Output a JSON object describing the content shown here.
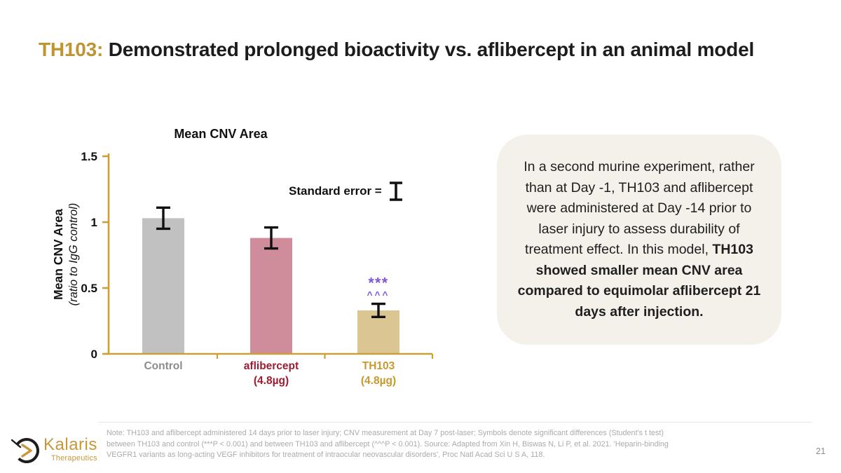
{
  "slide": {
    "title_prefix": "TH103:",
    "title_rest": " Demonstrated prolonged bioactivity vs. aflibercept in an animal model",
    "page_number": "21",
    "footer_note": "Note: TH103 and aflibercept administered 14 days prior to laser injury; CNV measurement at Day 7 post-laser; Symbols denote significant differences (Student's t test) between TH103 and control (***P < 0.001) and between TH103 and aflibercept (^^^P < 0.001). Source: Adapted from Xin H, Biswas N, Li P, et al. 2021. 'Heparin-binding VEGFR1 variants as long-acting VEGF inhibitors for treatment of intraocular neovascular disorders', Proc Natl Acad Sci U S A, 118.",
    "logo_name": "Kalaris",
    "logo_sub": "Therapeutics"
  },
  "callout": {
    "background": "#f3f1ea",
    "text_normal": "In a second murine experiment, rather than at Day -1, TH103 and aflibercept were administered at Day -14 prior to laser injury to assess durability of treatment effect. In this model, ",
    "text_bold": "TH103 showed smaller mean CNV area compared to equimolar aflibercept 21 days after injection."
  },
  "chart_data": {
    "type": "bar",
    "title": "Mean CNV Area",
    "ylabel_line1": "Mean CNV Area",
    "ylabel_line2": "(ratio to IgG control)",
    "ylim": [
      0,
      1.5
    ],
    "yticks": [
      0,
      0.5,
      1,
      1.5
    ],
    "axis_color": "#c9a13b",
    "error_color": "#111111",
    "legend_note": "Standard error =",
    "grid": false,
    "categories": [
      {
        "label_lines": [
          "Control"
        ],
        "label_color": "#8c8c8c",
        "value": 1.03,
        "error": 0.08,
        "bar_color": "#c1c1c1",
        "significance": [],
        "significance_color": "#7f56d9"
      },
      {
        "label_lines": [
          "aflibercept",
          "(4.8µg)"
        ],
        "label_color": "#9e1b32",
        "value": 0.88,
        "error": 0.08,
        "bar_color": "#cf8d9b",
        "significance": [],
        "significance_color": "#7f56d9"
      },
      {
        "label_lines": [
          "TH103",
          "(4.8µg)"
        ],
        "label_color": "#c9992e",
        "value": 0.33,
        "error": 0.05,
        "bar_color": "#dbc592",
        "significance": [
          "***",
          "^^^"
        ],
        "significance_color": "#7f56d9"
      }
    ]
  }
}
